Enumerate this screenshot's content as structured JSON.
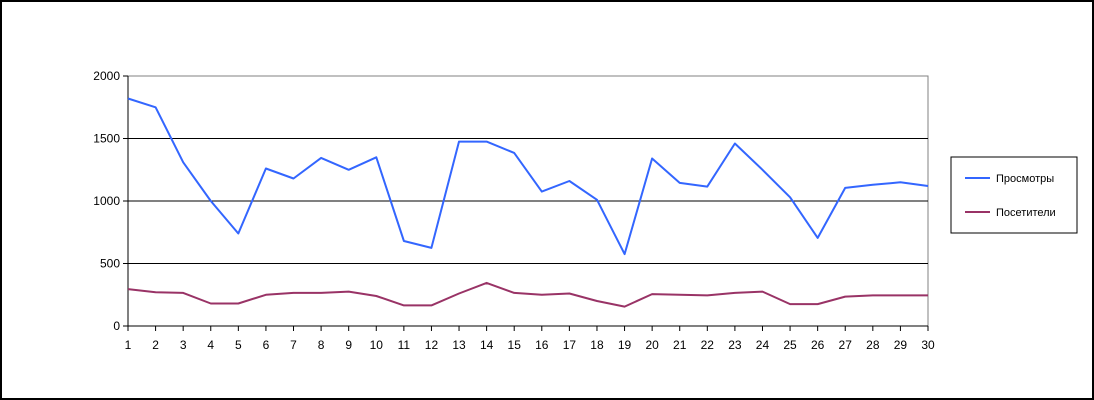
{
  "chart_data": {
    "type": "line",
    "title": "",
    "xlabel": "",
    "ylabel": "",
    "categories": [
      1,
      2,
      3,
      4,
      5,
      6,
      7,
      8,
      9,
      10,
      11,
      12,
      13,
      14,
      15,
      16,
      17,
      18,
      19,
      20,
      21,
      22,
      23,
      24,
      25,
      26,
      27,
      28,
      29,
      30
    ],
    "ylim": [
      0,
      2000
    ],
    "yticks": [
      0,
      500,
      1000,
      1500,
      2000
    ],
    "grid": true,
    "legend_position": "right",
    "series": [
      {
        "name": "Просмотры",
        "color": "#3366ff",
        "values": [
          1820,
          1750,
          1310,
          1000,
          740,
          1260,
          1180,
          1345,
          1250,
          1350,
          680,
          625,
          1475,
          1475,
          1385,
          1075,
          1160,
          1010,
          575,
          1340,
          1145,
          1115,
          1460,
          1250,
          1030,
          705,
          1105,
          1130,
          1150,
          1120
        ]
      },
      {
        "name": "Посетители",
        "color": "#993366",
        "values": [
          295,
          270,
          265,
          180,
          180,
          250,
          265,
          265,
          275,
          240,
          165,
          165,
          260,
          345,
          265,
          250,
          260,
          200,
          155,
          255,
          250,
          245,
          265,
          275,
          175,
          175,
          235,
          245,
          245,
          245
        ]
      }
    ]
  }
}
